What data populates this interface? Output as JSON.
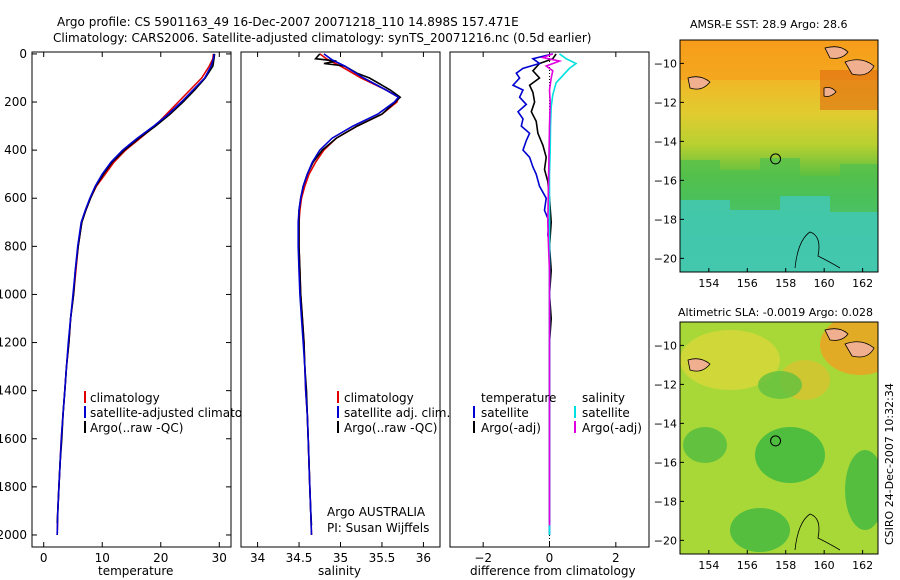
{
  "chart_data": {
    "type": "line",
    "title": {
      "line1": "Argo profile: CS 5901163_49 16-Dec-2007 20071218_110 14.898S 157.471E",
      "line2": "Climatology: CARS2006. Satellite-adjusted climatology: synTS_20071216.nc (0.5d earlier)"
    },
    "depth_ticks": [
      0,
      200,
      400,
      600,
      800,
      1000,
      1200,
      1400,
      1600,
      1800,
      2000
    ],
    "colors": {
      "climatology": "#e00000",
      "satellite": "#0000d0",
      "argo": "#000000",
      "sal_satellite": "#00e0e0",
      "sal_argo": "#e000e0"
    },
    "temperature": {
      "xlabel": "temperature",
      "xlim": [
        -2,
        32
      ],
      "xticks": [
        0,
        10,
        20,
        30
      ],
      "legend": [
        "climatology",
        "satellite-adjusted climatology",
        "Argo(..raw -QC)"
      ],
      "climatology": [
        [
          29,
          0
        ],
        [
          28.9,
          20
        ],
        [
          28.3,
          50
        ],
        [
          27,
          100
        ],
        [
          25,
          150
        ],
        [
          23,
          200
        ],
        [
          21,
          250
        ],
        [
          19,
          300
        ],
        [
          16.5,
          350
        ],
        [
          14,
          400
        ],
        [
          12,
          450
        ],
        [
          10.5,
          500
        ],
        [
          9,
          550
        ],
        [
          8,
          600
        ],
        [
          7.2,
          650
        ],
        [
          6.5,
          700
        ],
        [
          5.9,
          800
        ],
        [
          5.5,
          900
        ],
        [
          5.1,
          1000
        ],
        [
          4.6,
          1100
        ],
        [
          4.3,
          1200
        ],
        [
          3.9,
          1300
        ],
        [
          3.6,
          1400
        ],
        [
          3.3,
          1500
        ],
        [
          3.0,
          1600
        ],
        [
          2.8,
          1700
        ],
        [
          2.6,
          1800
        ],
        [
          2.4,
          1900
        ],
        [
          2.3,
          2000
        ]
      ],
      "satellite": [
        [
          29.1,
          0
        ],
        [
          29,
          20
        ],
        [
          28.6,
          50
        ],
        [
          27.5,
          100
        ],
        [
          25.5,
          150
        ],
        [
          23.5,
          200
        ],
        [
          21.3,
          250
        ],
        [
          18.8,
          300
        ],
        [
          16,
          350
        ],
        [
          13.5,
          400
        ],
        [
          11.5,
          450
        ],
        [
          10,
          500
        ],
        [
          8.8,
          550
        ],
        [
          7.9,
          600
        ],
        [
          7.1,
          650
        ],
        [
          6.4,
          700
        ],
        [
          5.8,
          800
        ],
        [
          5.4,
          900
        ],
        [
          5.0,
          1000
        ],
        [
          4.6,
          1100
        ],
        [
          4.2,
          1200
        ],
        [
          3.9,
          1300
        ],
        [
          3.6,
          1400
        ],
        [
          3.3,
          1500
        ],
        [
          3.0,
          1600
        ],
        [
          2.8,
          1700
        ],
        [
          2.6,
          1800
        ],
        [
          2.4,
          1900
        ],
        [
          2.3,
          2000
        ]
      ],
      "argo": [
        [
          29.2,
          0
        ],
        [
          29.1,
          20
        ],
        [
          28.9,
          50
        ],
        [
          27.6,
          100
        ],
        [
          25.8,
          150
        ],
        [
          23.8,
          200
        ],
        [
          21.6,
          250
        ],
        [
          19.1,
          300
        ],
        [
          16.3,
          350
        ],
        [
          13.8,
          400
        ],
        [
          11.7,
          450
        ],
        [
          10.2,
          500
        ],
        [
          8.9,
          550
        ],
        [
          8,
          600
        ],
        [
          7.2,
          650
        ],
        [
          6.5,
          700
        ],
        [
          5.9,
          800
        ],
        [
          5.4,
          900
        ],
        [
          5.1,
          1000
        ],
        [
          4.6,
          1100
        ],
        [
          4.3,
          1200
        ],
        [
          3.9,
          1300
        ],
        [
          3.6,
          1400
        ],
        [
          3.3,
          1500
        ],
        [
          3.1,
          1600
        ],
        [
          2.8,
          1700
        ],
        [
          2.6,
          1800
        ],
        [
          2.4,
          1900
        ],
        [
          2.3,
          1950
        ]
      ]
    },
    "salinity": {
      "xlabel": "salinity",
      "xlim": [
        33.8,
        36.2
      ],
      "xticks": [
        34,
        34.5,
        35,
        35.5,
        36
      ],
      "legend": [
        "climatology",
        "satellite adj. clim.",
        "Argo(..raw -QC)"
      ],
      "annotation": [
        "Argo AUSTRALIA",
        "PI: Susan Wijffels"
      ],
      "climatology": [
        [
          34.75,
          0
        ],
        [
          34.85,
          25
        ],
        [
          35.0,
          50
        ],
        [
          35.25,
          100
        ],
        [
          35.55,
          150
        ],
        [
          35.7,
          180
        ],
        [
          35.68,
          200
        ],
        [
          35.5,
          250
        ],
        [
          35.2,
          300
        ],
        [
          34.95,
          350
        ],
        [
          34.8,
          400
        ],
        [
          34.7,
          450
        ],
        [
          34.62,
          500
        ],
        [
          34.57,
          550
        ],
        [
          34.53,
          600
        ],
        [
          34.51,
          650
        ],
        [
          34.5,
          700
        ],
        [
          34.5,
          800
        ],
        [
          34.51,
          900
        ],
        [
          34.52,
          1000
        ],
        [
          34.54,
          1100
        ],
        [
          34.56,
          1200
        ],
        [
          34.57,
          1300
        ],
        [
          34.58,
          1400
        ],
        [
          34.6,
          1500
        ],
        [
          34.61,
          1600
        ],
        [
          34.62,
          1700
        ],
        [
          34.63,
          1800
        ],
        [
          34.64,
          1900
        ],
        [
          34.65,
          2000
        ]
      ],
      "satellite": [
        [
          34.8,
          0
        ],
        [
          34.9,
          25
        ],
        [
          35.05,
          50
        ],
        [
          35.28,
          100
        ],
        [
          35.55,
          150
        ],
        [
          35.7,
          180
        ],
        [
          35.65,
          200
        ],
        [
          35.45,
          250
        ],
        [
          35.15,
          300
        ],
        [
          34.9,
          350
        ],
        [
          34.75,
          400
        ],
        [
          34.66,
          450
        ],
        [
          34.6,
          500
        ],
        [
          34.55,
          550
        ],
        [
          34.52,
          600
        ],
        [
          34.5,
          650
        ],
        [
          34.49,
          700
        ],
        [
          34.49,
          800
        ],
        [
          34.5,
          900
        ],
        [
          34.51,
          1000
        ],
        [
          34.53,
          1100
        ],
        [
          34.55,
          1200
        ],
        [
          34.57,
          1300
        ],
        [
          34.58,
          1400
        ],
        [
          34.6,
          1500
        ],
        [
          34.61,
          1600
        ],
        [
          34.62,
          1700
        ],
        [
          34.63,
          1800
        ],
        [
          34.64,
          1900
        ],
        [
          34.65,
          2000
        ]
      ],
      "argo": [
        [
          34.75,
          0
        ],
        [
          34.7,
          20
        ],
        [
          34.95,
          30
        ],
        [
          34.8,
          40
        ],
        [
          35.05,
          50
        ],
        [
          35.2,
          80
        ],
        [
          35.35,
          100
        ],
        [
          35.6,
          150
        ],
        [
          35.72,
          180
        ],
        [
          35.66,
          200
        ],
        [
          35.5,
          250
        ],
        [
          35.2,
          300
        ],
        [
          34.95,
          350
        ],
        [
          34.78,
          400
        ],
        [
          34.67,
          450
        ],
        [
          34.6,
          500
        ],
        [
          34.55,
          550
        ],
        [
          34.52,
          600
        ],
        [
          34.5,
          650
        ],
        [
          34.5,
          700
        ],
        [
          34.5,
          800
        ],
        [
          34.51,
          900
        ],
        [
          34.52,
          1000
        ],
        [
          34.54,
          1100
        ],
        [
          34.56,
          1200
        ],
        [
          34.57,
          1300
        ],
        [
          34.59,
          1400
        ],
        [
          34.6,
          1500
        ],
        [
          34.61,
          1600
        ],
        [
          34.62,
          1700
        ],
        [
          34.63,
          1800
        ],
        [
          34.64,
          1900
        ],
        [
          34.65,
          1960
        ]
      ]
    },
    "difference": {
      "xlabel": "difference from climatology",
      "xlim": [
        -3,
        3
      ],
      "xticks": [
        -2,
        0,
        2
      ],
      "legend_temperature": [
        "temperature",
        "satellite",
        "Argo(-adj)"
      ],
      "legend_salinity": [
        "salinity",
        "satellite",
        "Argo(-adj)"
      ],
      "temp_satellite": [
        [
          0.1,
          0
        ],
        [
          -0.5,
          20
        ],
        [
          -0.3,
          40
        ],
        [
          -0.8,
          60
        ],
        [
          -1.0,
          80
        ],
        [
          -0.9,
          100
        ],
        [
          -1.1,
          130
        ],
        [
          -0.8,
          150
        ],
        [
          -0.9,
          180
        ],
        [
          -0.7,
          210
        ],
        [
          -0.95,
          240
        ],
        [
          -0.8,
          270
        ],
        [
          -0.85,
          300
        ],
        [
          -0.6,
          330
        ],
        [
          -0.7,
          360
        ],
        [
          -0.8,
          400
        ],
        [
          -0.6,
          430
        ],
        [
          -0.5,
          470
        ],
        [
          -0.4,
          500
        ],
        [
          -0.3,
          550
        ],
        [
          -0.1,
          600
        ],
        [
          -0.15,
          650
        ],
        [
          0.0,
          700
        ],
        [
          -0.05,
          750
        ],
        [
          0.0,
          800
        ],
        [
          0.0,
          1000
        ],
        [
          0.0,
          2000
        ]
      ],
      "temp_argo": [
        [
          0.2,
          0
        ],
        [
          0.1,
          20
        ],
        [
          -0.3,
          40
        ],
        [
          -0.5,
          70
        ],
        [
          -0.3,
          100
        ],
        [
          -0.6,
          130
        ],
        [
          -0.5,
          160
        ],
        [
          -0.45,
          200
        ],
        [
          -0.55,
          240
        ],
        [
          -0.4,
          280
        ],
        [
          -0.35,
          330
        ],
        [
          -0.2,
          380
        ],
        [
          -0.1,
          430
        ],
        [
          -0.15,
          480
        ],
        [
          -0.05,
          530
        ],
        [
          0.0,
          600
        ],
        [
          0.05,
          700
        ],
        [
          0.0,
          800
        ],
        [
          0.05,
          900
        ],
        [
          0.0,
          1000
        ],
        [
          0.05,
          1100
        ],
        [
          0.0,
          1200
        ],
        [
          0.0,
          1950
        ]
      ],
      "sal_satellite": [
        [
          0.3,
          0
        ],
        [
          0.5,
          20
        ],
        [
          0.8,
          40
        ],
        [
          0.6,
          60
        ],
        [
          0.4,
          90
        ],
        [
          0.2,
          120
        ],
        [
          0.1,
          170
        ],
        [
          0.05,
          220
        ],
        [
          0.03,
          300
        ],
        [
          0.02,
          400
        ],
        [
          0.0,
          500
        ],
        [
          0.0,
          700
        ],
        [
          0.0,
          2000
        ]
      ],
      "sal_argo": [
        [
          0.1,
          0
        ],
        [
          -0.2,
          15
        ],
        [
          0.3,
          30
        ],
        [
          -0.1,
          50
        ],
        [
          0.1,
          70
        ],
        [
          0.05,
          100
        ],
        [
          0.0,
          150
        ],
        [
          0.02,
          200
        ],
        [
          0.0,
          300
        ],
        [
          -0.05,
          700
        ],
        [
          -0.03,
          800
        ],
        [
          0.0,
          900
        ],
        [
          0.0,
          1960
        ]
      ]
    }
  },
  "maps": {
    "sst": {
      "title": "AMSR-E SST: 28.9 Argo: 28.6",
      "xticks": [
        154,
        156,
        158,
        160,
        162
      ],
      "yticks": [
        -10,
        -12,
        -14,
        -16,
        -18,
        -20
      ]
    },
    "sla": {
      "title": "Altimetric SLA: -0.0019 Argo: 0.028",
      "xticks": [
        154,
        156,
        158,
        160,
        162
      ],
      "yticks": [
        -10,
        -12,
        -14,
        -16,
        -18,
        -20
      ]
    },
    "lon_range": [
      152.5,
      162.8
    ],
    "lat_range": [
      -20.7,
      -8.8
    ],
    "profile_location": {
      "lon": 157.471,
      "lat": -14.898
    }
  },
  "footer": "CSIRO 24-Dec-2007 10:32:34"
}
